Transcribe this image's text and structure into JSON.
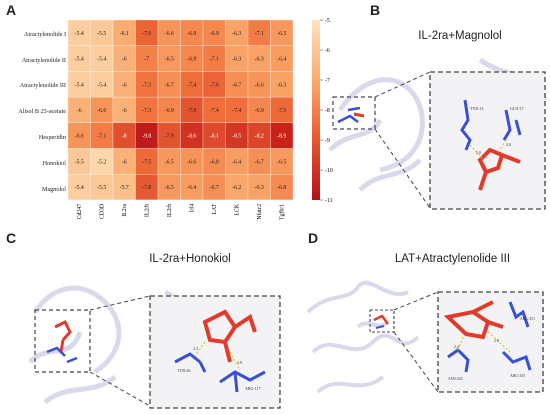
{
  "panels": {
    "A": {
      "letter": "A"
    },
    "B": {
      "letter": "B",
      "title": "IL-2ra+Magnolol"
    },
    "C": {
      "letter": "C",
      "title": "IL-2ra+Honokiol"
    },
    "D": {
      "letter": "D",
      "title": "LAT+Atractylenolide III"
    }
  },
  "chart_data": {
    "type": "heatmap",
    "rows": [
      "Atractylenolide I",
      "Atractylenolide II",
      "Atractylenolide III",
      "Alisol B 23-acetate",
      "Hesperidin",
      "Honokiol",
      "Magnolol"
    ],
    "columns": [
      "Cd247",
      "CD3D",
      "IL2ra",
      "IL2rb",
      "IL2rb",
      "Irf4",
      "LAT",
      "LCK",
      "Nfatc2",
      "Tgfbr1"
    ],
    "values": [
      [
        -5.4,
        -5.5,
        -6.1,
        -7.6,
        -6.6,
        -6.9,
        -6.9,
        -6.3,
        -7.1,
        -6.5
      ],
      [
        -5.4,
        -5.4,
        -6,
        -7,
        -6.5,
        -6.9,
        -7.1,
        -6.3,
        -6.3,
        -6.4
      ],
      [
        -5.4,
        -5.4,
        -6,
        -7.3,
        -6.7,
        -7.4,
        -7.6,
        -6.7,
        -6.6,
        -6.3
      ],
      [
        -6,
        -6.6,
        -6,
        -7.3,
        -6.9,
        -7.9,
        -7.4,
        -7.4,
        -6.9,
        -7.5
      ],
      [
        -6.6,
        -7.1,
        -8,
        -9.8,
        -7.9,
        -8.6,
        -8.1,
        -8.5,
        -8.2,
        -8.9
      ],
      [
        -5.5,
        -5.2,
        -6,
        -7.5,
        -6.5,
        -6.6,
        -6.8,
        -6.4,
        -6.7,
        -6.5
      ],
      [
        -5.4,
        -5.5,
        -5.7,
        -7.8,
        -6.5,
        -6.4,
        -6.7,
        -6.2,
        -6.3,
        -6.8
      ]
    ],
    "colorbar": {
      "ticks": [
        "-5",
        "-6",
        "-7",
        "-8",
        "-9",
        "-10",
        "-11"
      ],
      "min": -11,
      "max": -5
    },
    "colors": {
      "low": "#c8221b",
      "mid": "#f06e3a",
      "high": "#fde0b8"
    }
  },
  "residue_labels": {
    "B": [
      "TYR-13",
      "GLN-17",
      "2.0",
      "2.0"
    ],
    "C": [
      "TYR-26",
      "ARG-117",
      "2.3",
      "2.9"
    ],
    "D": [
      "ARG-251",
      "ASN-245",
      "ARG-235",
      "2.4",
      "2.9"
    ]
  }
}
